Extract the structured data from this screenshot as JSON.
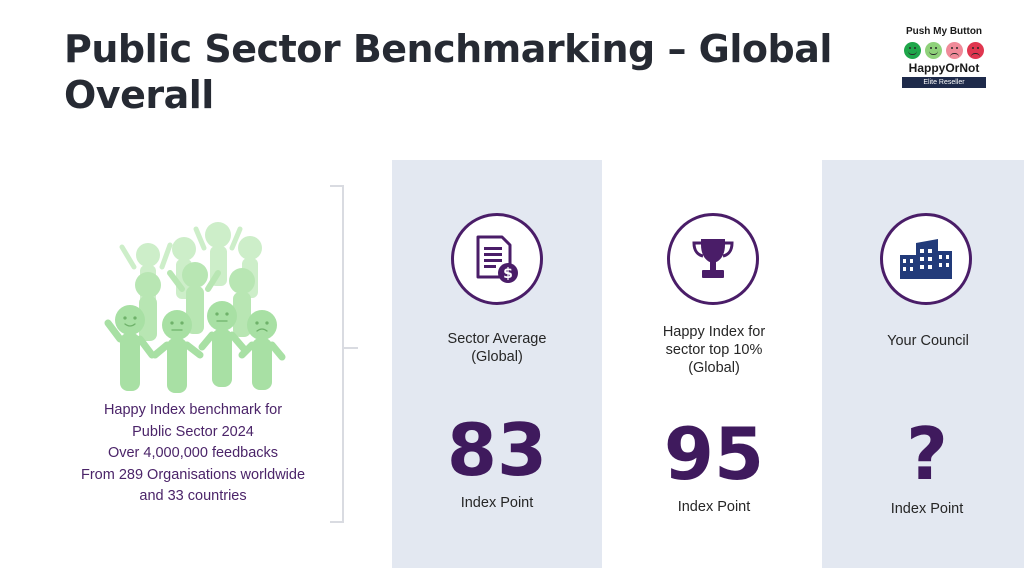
{
  "title": {
    "line1": "Public Sector Benchmarking – Global",
    "line2": "Overall"
  },
  "logo": {
    "top_text": "Push My Button",
    "brand": "HappyOrNot",
    "badge": "Elite Reseller"
  },
  "benchmark": {
    "lines": [
      "Happy Index benchmark for",
      "Public Sector 2024",
      "Over 4,000,000 feedbacks",
      "From 289 Organisations worldwide",
      "and 33 countries"
    ]
  },
  "columns": [
    {
      "icon": "invoice-dollar-icon",
      "label_lines": [
        "Sector Average",
        "(Global)"
      ],
      "value": "83",
      "unit": "Index Point"
    },
    {
      "icon": "trophy-icon",
      "label_lines": [
        "Happy Index for",
        "sector top 10%",
        "(Global)"
      ],
      "value": "95",
      "unit": "Index Point"
    },
    {
      "icon": "building-icon",
      "label_lines": [
        "Your Council"
      ],
      "value": "?",
      "unit": "Index Point"
    }
  ],
  "colors": {
    "title": "#262a33",
    "accent_purple": "#4a1d68",
    "number_purple": "#3f1a5d",
    "text_purple": "#4b2469",
    "panel_bg": "#e3e8f1",
    "people_green": "#a8e0a4"
  }
}
